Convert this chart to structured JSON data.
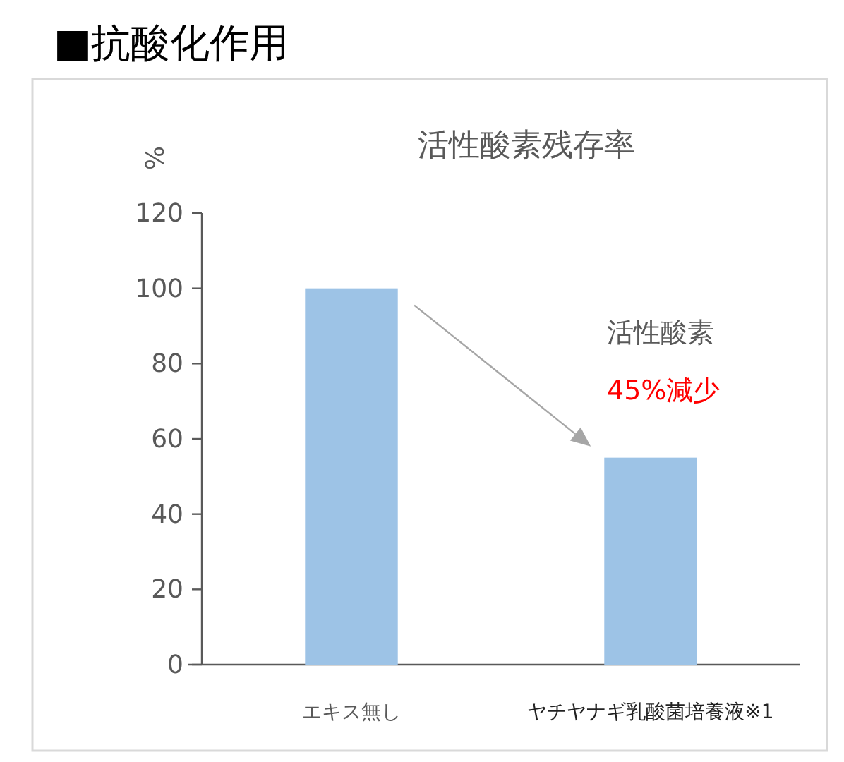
{
  "chart_data": {
    "type": "bar",
    "title": "■抗酸化作用",
    "subtitle": "活性酸素残存率",
    "ylabel": "%",
    "categories": [
      "エキス無し",
      "ヤチヤナギ乳酸菌培養液※1"
    ],
    "values": [
      100,
      55
    ],
    "color": "#9dc3e6",
    "ylim": [
      0,
      120
    ],
    "yticks": [
      0,
      20,
      40,
      60,
      80,
      100,
      120
    ],
    "grid": false,
    "annotations": [
      "活性酸素",
      "45%減少"
    ]
  }
}
